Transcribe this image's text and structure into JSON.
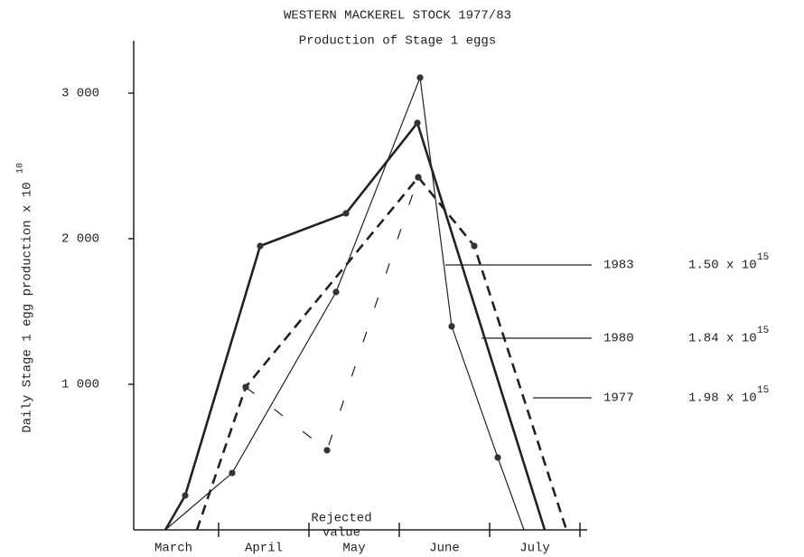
{
  "chart_data": {
    "type": "line",
    "title": "WESTERN MACKEREL STOCK 1977/83",
    "subtitle": "Production of Stage 1 eggs",
    "y_label": "Daily Stage 1 egg production x 10",
    "y_label_exp": "10",
    "categories": [
      "March",
      "April",
      "May",
      "June",
      "July"
    ],
    "xlim": [
      0.06,
      5.08
    ],
    "xticks": [
      1,
      2,
      3,
      4,
      5
    ],
    "ylim": [
      0,
      3360
    ],
    "yticks": [
      {
        "value": 1000,
        "label": "1 000"
      },
      {
        "value": 2000,
        "label": "2 000"
      },
      {
        "value": 3000,
        "label": "3 000"
      }
    ],
    "series": [
      {
        "name": "1983",
        "total_label": "1.50 x 10",
        "total_exp": "15",
        "color": "#222",
        "width": 1.2,
        "dash": "",
        "x": [
          0.41,
          1.15,
          2.3,
          3.23,
          3.58,
          4.09,
          4.38
        ],
        "values": [
          0,
          391,
          1634,
          3106,
          1398,
          497,
          0
        ]
      },
      {
        "name": "1980",
        "total_label": "1.84 x 10",
        "total_exp": "15",
        "color": "#222",
        "width": 2.6,
        "dash": "11,7",
        "x": [
          0.76,
          1.3,
          3.21,
          3.83,
          4.85
        ],
        "values": [
          0,
          981,
          2422,
          1950,
          0
        ]
      },
      {
        "name": "1977",
        "total_label": "1.98 x 10",
        "total_exp": "15",
        "color": "#222",
        "width": 2.6,
        "dash": "",
        "x": [
          0.41,
          0.63,
          1.46,
          2.41,
          3.2,
          4.61
        ],
        "values": [
          0,
          236,
          1950,
          2174,
          2795,
          0
        ]
      },
      {
        "color": "#222",
        "width": 1.2,
        "dash": "12,28",
        "x": [
          1.3,
          2.2,
          3.21
        ],
        "values": [
          981,
          547,
          2422
        ]
      }
    ],
    "annotation": [
      "Rejected",
      "value"
    ]
  }
}
